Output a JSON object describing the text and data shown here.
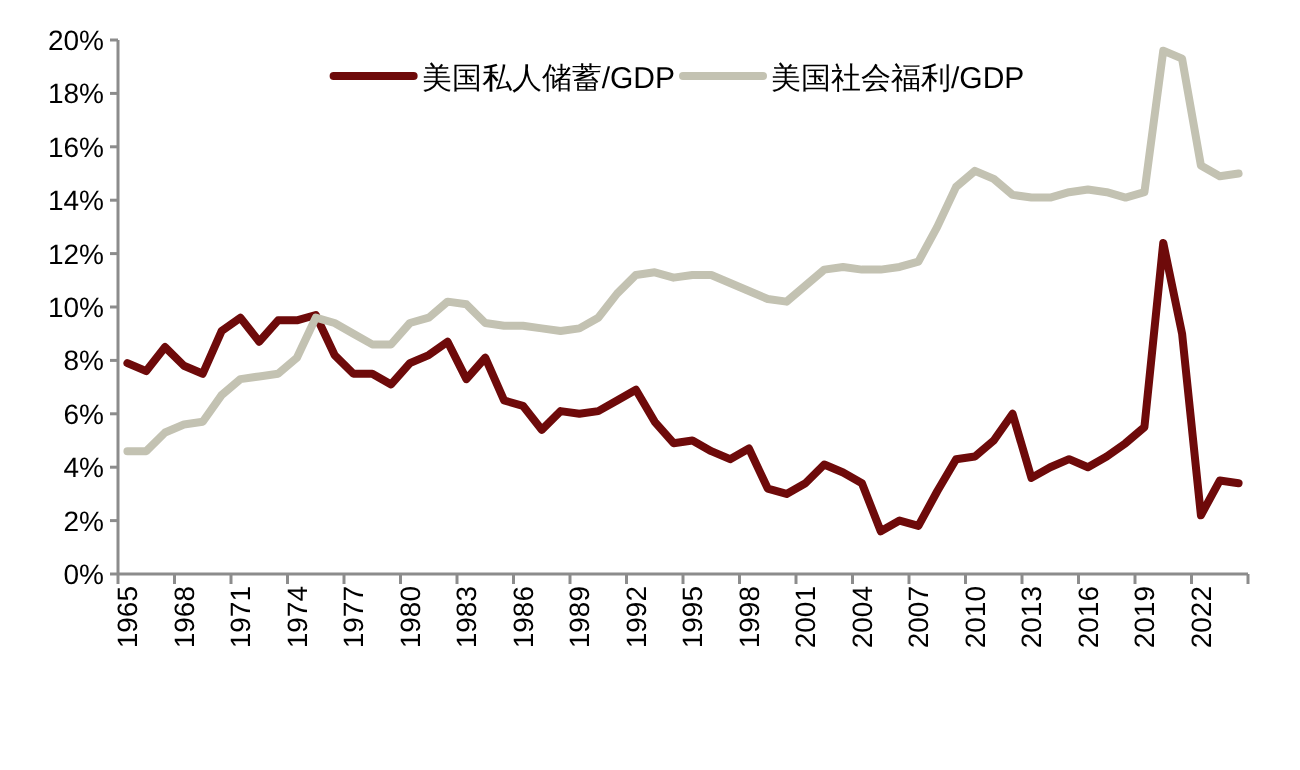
{
  "chart_data": {
    "type": "line",
    "categories": [
      "1965",
      null,
      null,
      "1968",
      null,
      null,
      "1971",
      null,
      null,
      "1974",
      null,
      null,
      "1977",
      null,
      null,
      "1980",
      null,
      null,
      "1983",
      null,
      null,
      "1986",
      null,
      null,
      "1989",
      null,
      null,
      "1992",
      null,
      null,
      "1995",
      null,
      null,
      "1998",
      null,
      null,
      "2001",
      null,
      null,
      "2004",
      null,
      null,
      "2007",
      null,
      null,
      "2010",
      null,
      null,
      "2013",
      null,
      null,
      "2016",
      null,
      null,
      "2019",
      null,
      null,
      "2022",
      null,
      null
    ],
    "series": [
      {
        "name": "美国私人储蓄/GDP",
        "color": "#6e0a0a",
        "values": [
          7.9,
          7.6,
          8.5,
          7.8,
          7.5,
          9.1,
          9.6,
          8.7,
          9.5,
          9.5,
          9.7,
          8.2,
          7.5,
          7.5,
          7.1,
          7.9,
          8.2,
          8.7,
          7.3,
          8.1,
          6.5,
          6.3,
          5.4,
          6.1,
          6.0,
          6.1,
          6.5,
          6.9,
          5.7,
          4.9,
          5.0,
          4.6,
          4.3,
          4.7,
          3.2,
          3.0,
          3.4,
          4.1,
          3.8,
          3.4,
          1.6,
          2.0,
          1.8,
          3.1,
          4.3,
          4.4,
          5.0,
          6.0,
          3.6,
          4.0,
          4.3,
          4.0,
          4.4,
          4.9,
          5.5,
          12.4,
          9.0,
          2.2,
          3.5,
          3.4
        ]
      },
      {
        "name": "美国社会福利/GDP",
        "color": "#c3c2b2",
        "values": [
          4.6,
          4.6,
          5.3,
          5.6,
          5.7,
          6.7,
          7.3,
          7.4,
          7.5,
          8.1,
          9.6,
          9.4,
          9.0,
          8.6,
          8.6,
          9.4,
          9.6,
          10.2,
          10.1,
          9.4,
          9.3,
          9.3,
          9.2,
          9.1,
          9.2,
          9.6,
          10.5,
          11.2,
          11.3,
          11.1,
          11.2,
          11.2,
          10.9,
          10.6,
          10.3,
          10.2,
          10.8,
          11.4,
          11.5,
          11.4,
          11.4,
          11.5,
          11.7,
          13.0,
          14.5,
          15.1,
          14.8,
          14.2,
          14.1,
          14.1,
          14.3,
          14.4,
          14.3,
          14.1,
          14.3,
          19.6,
          19.3,
          15.3,
          14.9,
          15.0
        ]
      }
    ],
    "ylim": [
      0,
      20
    ],
    "yticks": [
      {
        "value": 0,
        "label": "0%"
      },
      {
        "value": 2,
        "label": "2%"
      },
      {
        "value": 4,
        "label": "4%"
      },
      {
        "value": 6,
        "label": "6%"
      },
      {
        "value": 8,
        "label": "8%"
      },
      {
        "value": 10,
        "label": "10%"
      },
      {
        "value": 12,
        "label": "12%"
      },
      {
        "value": 14,
        "label": "14%"
      },
      {
        "value": 16,
        "label": "16%"
      },
      {
        "value": 18,
        "label": "18%"
      },
      {
        "value": 20,
        "label": "20%"
      }
    ],
    "legend": "top",
    "grid": false,
    "marker": "none",
    "line_style": "solid"
  }
}
